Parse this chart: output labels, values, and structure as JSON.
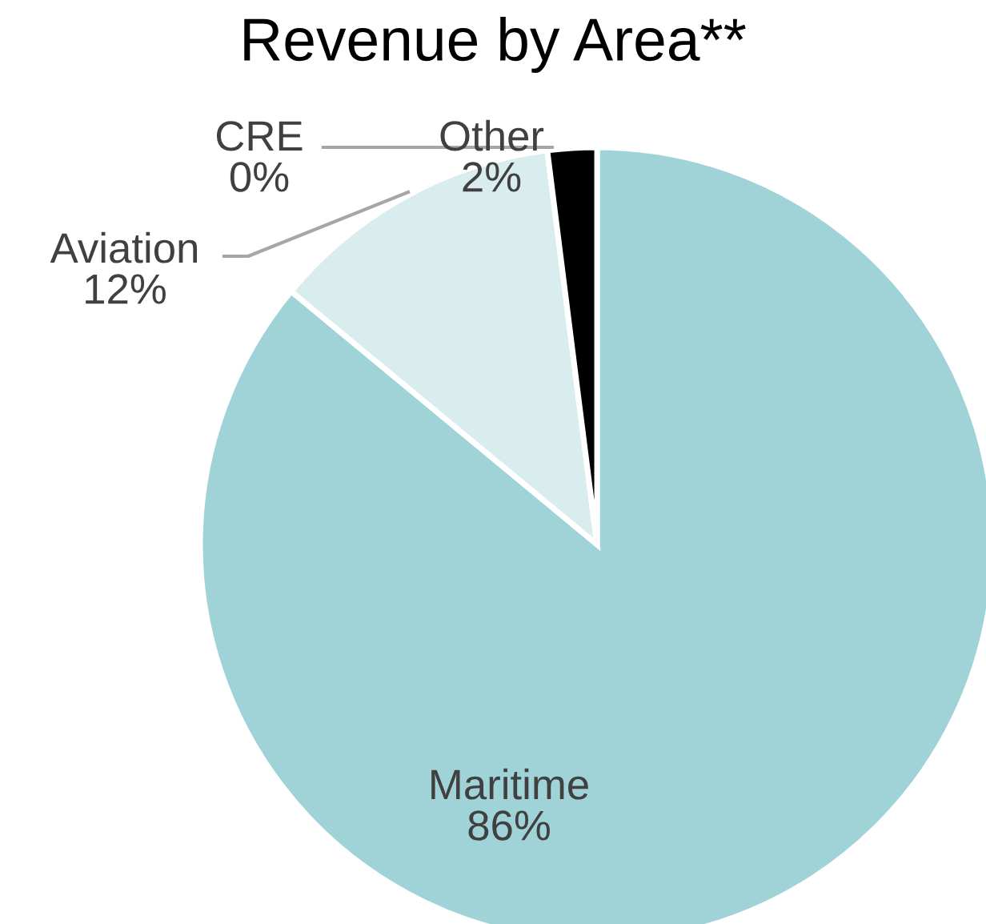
{
  "chart_data": {
    "type": "pie",
    "title": "Revenue by Area**",
    "categories": [
      "Maritime",
      "Aviation",
      "CRE",
      "Other"
    ],
    "values": [
      86,
      12,
      0,
      2
    ],
    "value_labels": [
      "86%",
      "12%",
      "0%",
      "2%"
    ],
    "colors": [
      "#9fd3d8",
      "#d9ecee",
      "#2040c0",
      "#000000"
    ]
  }
}
